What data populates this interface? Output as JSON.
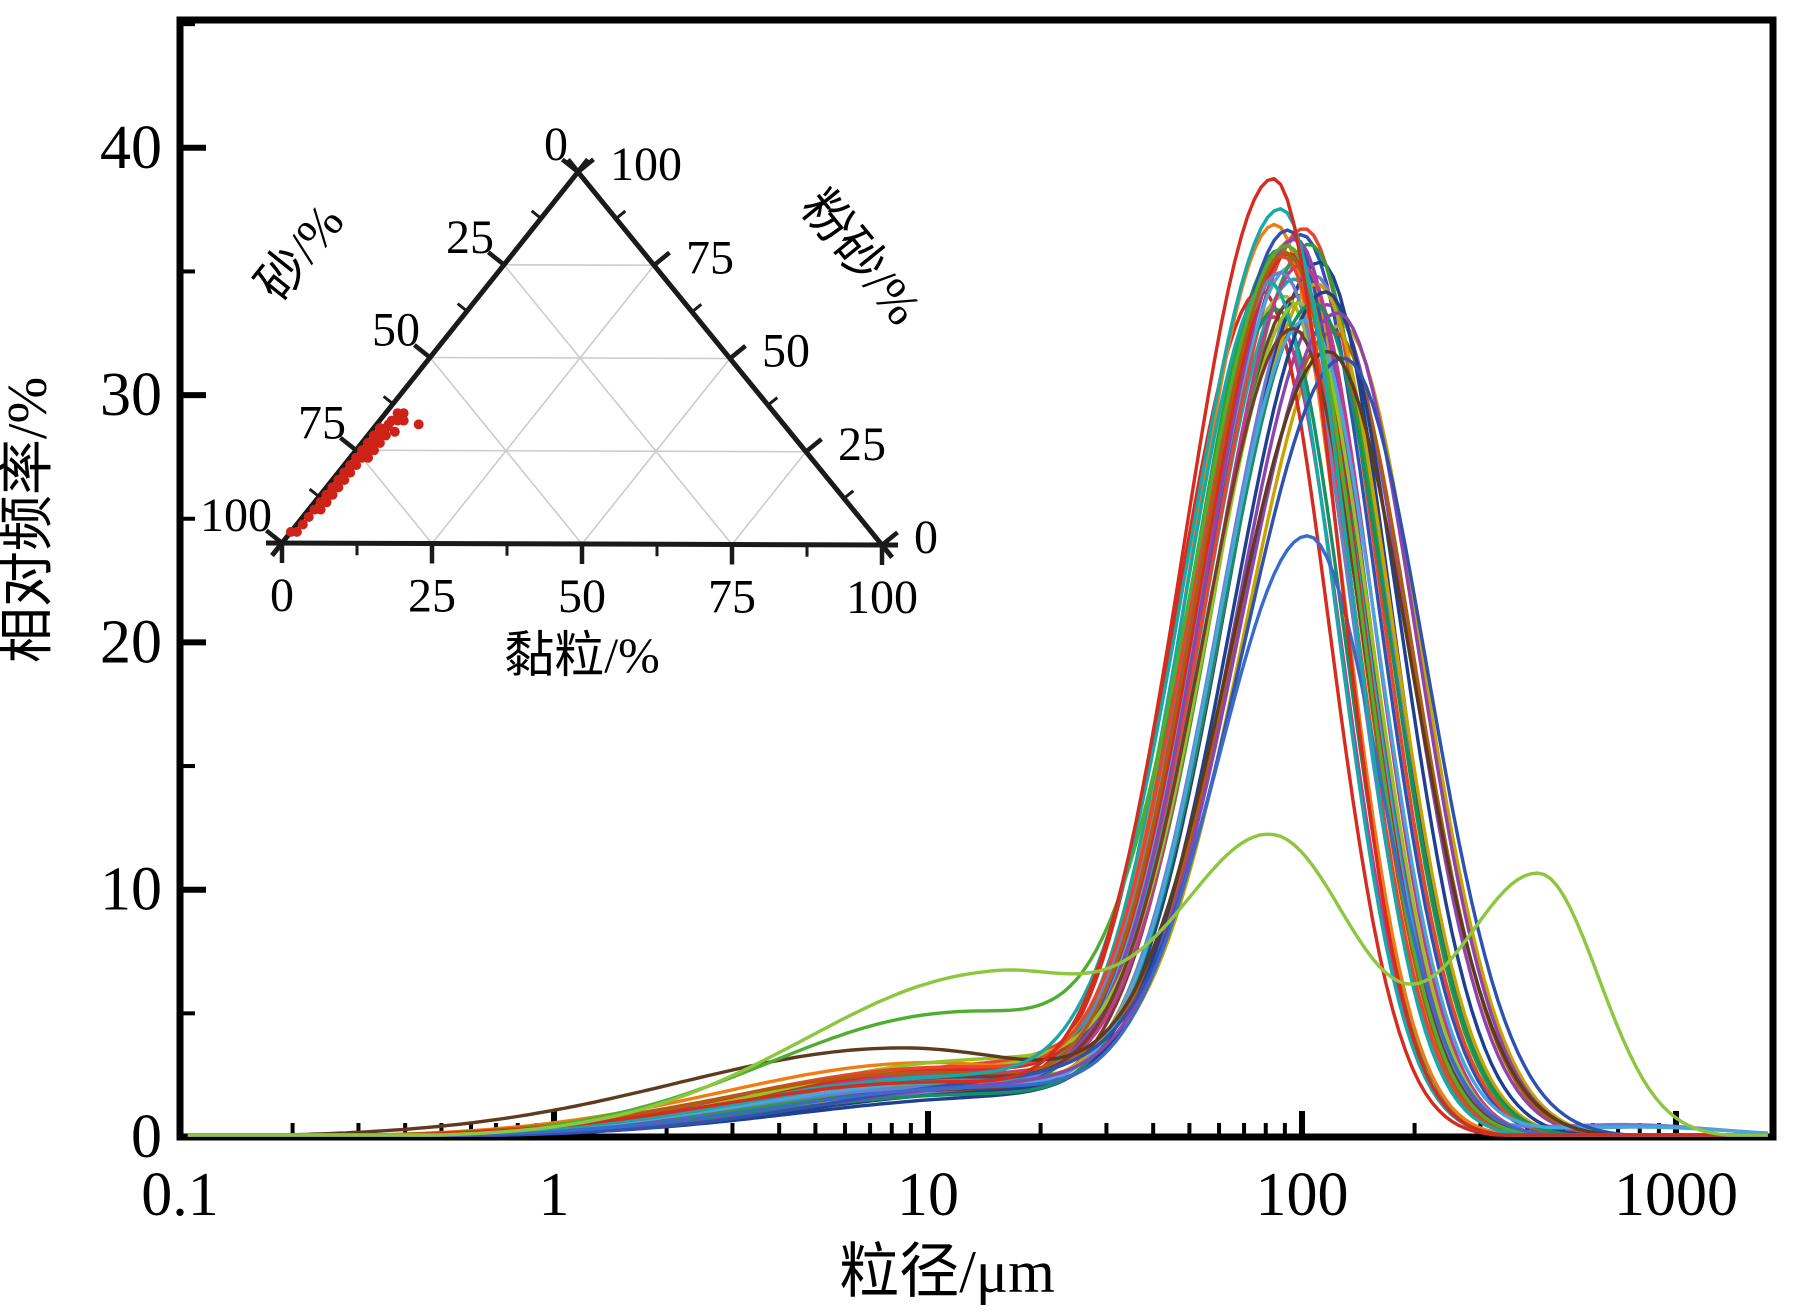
{
  "figure": {
    "background": "#ffffff",
    "frame_color": "#000000",
    "curve_stroke_width": 3.4
  },
  "chart_data": {
    "type": "line",
    "title": "",
    "xlabel": "粒径/μm",
    "ylabel": "相对频率/%",
    "x_scale": "log",
    "xlim": [
      0.1,
      1800
    ],
    "ylim": [
      0,
      45
    ],
    "x_ticks": [
      0.1,
      1,
      10,
      100,
      1000
    ],
    "x_tick_labels": [
      "0.1",
      "1",
      "10",
      "100",
      "1000"
    ],
    "y_ticks": [
      0,
      10,
      20,
      30,
      40
    ],
    "y_minor_ticks": [
      5,
      15,
      25,
      35,
      45
    ],
    "grid": "off",
    "legend": "none",
    "series_model": "each curve = sum of log-gaussian components [center_um, amplitude_pct, sigma_left_log10, sigma_right_log10]",
    "series": [
      {
        "c": "#f07d12",
        "p": [
          [
            14,
            2.6,
            0.55,
            0.4
          ],
          [
            95,
            36.0,
            0.24,
            0.19
          ]
        ]
      },
      {
        "c": "#2f52b0",
        "p": [
          [
            13,
            2.2,
            0.55,
            0.4
          ],
          [
            100,
            36.3,
            0.25,
            0.2
          ]
        ]
      },
      {
        "c": "#2e9e36",
        "p": [
          [
            12,
            2.0,
            0.55,
            0.4
          ],
          [
            88,
            35.7,
            0.24,
            0.19
          ]
        ]
      },
      {
        "c": "#8e44ad",
        "p": [
          [
            15,
            2.0,
            0.55,
            0.4
          ],
          [
            118,
            33.5,
            0.25,
            0.21
          ]
        ]
      },
      {
        "c": "#c8a400",
        "p": [
          [
            18,
            2.2,
            0.55,
            0.4
          ],
          [
            128,
            32.6,
            0.26,
            0.21
          ]
        ]
      },
      {
        "c": "#c23a8c",
        "p": [
          [
            10,
            2.4,
            0.55,
            0.4
          ],
          [
            84,
            33.0,
            0.23,
            0.18
          ]
        ]
      },
      {
        "c": "#18a8a8",
        "p": [
          [
            12,
            2.5,
            0.55,
            0.4
          ],
          [
            96,
            34.5,
            0.24,
            0.19
          ]
        ]
      },
      {
        "c": "#d62b1f",
        "p": [
          [
            9,
            2.2,
            0.55,
            0.4
          ],
          [
            78,
            34.1,
            0.23,
            0.18
          ]
        ]
      },
      {
        "c": "#6b7fd0",
        "p": [
          [
            14,
            1.8,
            0.55,
            0.4
          ],
          [
            108,
            34.7,
            0.25,
            0.2
          ]
        ]
      },
      {
        "c": "#1f3f8f",
        "p": [
          [
            16,
            1.6,
            0.55,
            0.4
          ],
          [
            112,
            35.2,
            0.25,
            0.19
          ]
        ]
      },
      {
        "c": "#98c222",
        "p": [
          [
            13,
            2.8,
            0.55,
            0.4
          ],
          [
            90,
            33.7,
            0.24,
            0.19
          ]
        ]
      },
      {
        "c": "#e8452c",
        "p": [
          [
            15,
            2.9,
            0.55,
            0.4
          ],
          [
            102,
            36.4,
            0.25,
            0.2
          ]
        ]
      },
      {
        "c": "#178f5f",
        "p": [
          [
            11,
            2.1,
            0.55,
            0.4
          ],
          [
            86,
            33.3,
            0.23,
            0.18
          ]
        ]
      },
      {
        "c": "#4aa5d8",
        "p": [
          [
            12,
            2.4,
            0.55,
            0.4
          ],
          [
            94,
            35.0,
            0.24,
            0.19
          ]
        ]
      },
      {
        "c": "#b05c10",
        "p": [
          [
            17,
            2.5,
            0.55,
            0.4
          ],
          [
            122,
            32.3,
            0.26,
            0.21
          ]
        ]
      },
      {
        "c": "#7a3b2e",
        "p": [
          [
            12,
            1.9,
            0.55,
            0.4
          ],
          [
            98,
            33.9,
            0.24,
            0.19
          ]
        ]
      },
      {
        "c": "#f07d12",
        "p": [
          [
            10,
            3.0,
            0.55,
            0.4
          ],
          [
            85,
            36.7,
            0.23,
            0.18
          ]
        ]
      },
      {
        "c": "#2f52b0",
        "p": [
          [
            12,
            2.0,
            0.55,
            0.4
          ],
          [
            92,
            36.5,
            0.24,
            0.19
          ]
        ]
      },
      {
        "c": "#2e9e36",
        "p": [
          [
            14,
            2.2,
            0.55,
            0.4
          ],
          [
            105,
            35.9,
            0.25,
            0.2
          ]
        ]
      },
      {
        "c": "#8e44ad",
        "p": [
          [
            13,
            2.3,
            0.55,
            0.4
          ],
          [
            96,
            36.1,
            0.24,
            0.19
          ]
        ]
      },
      {
        "c": "#c8a400",
        "p": [
          [
            15,
            2.0,
            0.55,
            0.4
          ],
          [
            110,
            34.3,
            0.25,
            0.2
          ]
        ]
      },
      {
        "c": "#c23a8c",
        "p": [
          [
            12,
            2.6,
            0.55,
            0.4
          ],
          [
            100,
            35.1,
            0.24,
            0.19
          ]
        ]
      },
      {
        "c": "#18a8a8",
        "p": [
          [
            10,
            2.3,
            0.55,
            0.4
          ],
          [
            82,
            34.4,
            0.23,
            0.18
          ]
        ]
      },
      {
        "c": "#d62b1f",
        "p": [
          [
            12,
            2.7,
            0.55,
            0.4
          ],
          [
            93,
            35.5,
            0.24,
            0.19
          ]
        ]
      },
      {
        "c": "#6b7fd0",
        "p": [
          [
            11,
            2.0,
            0.55,
            0.4
          ],
          [
            88,
            34.8,
            0.24,
            0.19
          ],
          [
            720,
            0.5,
            0.3,
            0.25
          ]
        ]
      },
      {
        "c": "#1f3f8f",
        "p": [
          [
            16,
            1.8,
            0.55,
            0.4
          ],
          [
            116,
            34.0,
            0.25,
            0.2
          ]
        ]
      },
      {
        "c": "#98c222",
        "p": [
          [
            14,
            3.1,
            0.55,
            0.4
          ],
          [
            99,
            33.4,
            0.24,
            0.19
          ]
        ]
      },
      {
        "c": "#e8452c",
        "p": [
          [
            11,
            2.8,
            0.55,
            0.4
          ],
          [
            89,
            35.4,
            0.24,
            0.19
          ]
        ]
      },
      {
        "c": "#178f5f",
        "p": [
          [
            13,
            1.7,
            0.55,
            0.4
          ],
          [
            108,
            33.6,
            0.25,
            0.2
          ]
        ]
      },
      {
        "c": "#4aa5d8",
        "p": [
          [
            12,
            2.2,
            0.55,
            0.4
          ],
          [
            103,
            32.9,
            0.24,
            0.19
          ],
          [
            800,
            0.4,
            0.3,
            0.25
          ]
        ]
      },
      {
        "c": "#b05c10",
        "p": [
          [
            10,
            2.6,
            0.55,
            0.4
          ],
          [
            91,
            35.6,
            0.24,
            0.19
          ]
        ]
      },
      {
        "c": "#7a3b2e",
        "p": [
          [
            12,
            2.4,
            0.55,
            0.4
          ],
          [
            95,
            32.5,
            0.24,
            0.19
          ]
        ]
      },
      {
        "c": "#8e44ad",
        "p": [
          [
            18,
            2.1,
            0.55,
            0.4
          ],
          [
            125,
            33.1,
            0.26,
            0.21
          ]
        ]
      },
      {
        "c": "#2f52b0",
        "p": [
          [
            20,
            2.3,
            0.55,
            0.4
          ],
          [
            130,
            31.2,
            0.27,
            0.22
          ]
        ]
      },
      {
        "c": "#5d3a20",
        "p": [
          [
            8.5,
            3.6,
            0.6,
            0.5
          ],
          [
            118,
            31.5,
            0.26,
            0.22
          ]
        ]
      },
      {
        "c": "#4fae32",
        "p": [
          [
            12,
            5.0,
            0.5,
            0.4
          ],
          [
            92,
            35.6,
            0.25,
            0.19
          ]
        ]
      },
      {
        "c": "#3b6bc8",
        "p": [
          [
            14,
            2.0,
            0.55,
            0.45
          ],
          [
            104,
            24.0,
            0.24,
            0.19
          ]
        ]
      },
      {
        "c": "#18a8a8",
        "p": [
          [
            12,
            2.4,
            0.55,
            0.4
          ],
          [
            88,
            37.3,
            0.25,
            0.185
          ]
        ]
      },
      {
        "c": "#d62b1f",
        "p": [
          [
            10,
            2.2,
            0.55,
            0.4
          ],
          [
            84,
            38.6,
            0.24,
            0.175
          ]
        ]
      },
      {
        "c": "#8dc63f",
        "p": [
          [
            15,
            6.6,
            0.5,
            0.35
          ],
          [
            85,
            11.5,
            0.25,
            0.22
          ],
          [
            430,
            10.6,
            0.22,
            0.16
          ]
        ]
      }
    ]
  },
  "ternary": {
    "axes": {
      "left_label": "砂/%",
      "right_label": "粉砂/%",
      "bottom_label": "黏粒/%"
    },
    "left_ticks": [
      0,
      25,
      50,
      75,
      100
    ],
    "right_ticks": [
      100,
      75,
      50,
      25,
      0
    ],
    "bottom_ticks": [
      0,
      25,
      50,
      75,
      100
    ],
    "grid_values": [
      25,
      50,
      75
    ],
    "edge_color": "#1a1a1a",
    "grid_color": "#cccccc",
    "point_color": "#cc2218",
    "points": [
      {
        "sand": 97,
        "silt": 3,
        "clay": 0
      },
      {
        "sand": 96,
        "silt": 3,
        "clay": 1
      },
      {
        "sand": 94,
        "silt": 5,
        "clay": 1
      },
      {
        "sand": 92,
        "silt": 7,
        "clay": 1
      },
      {
        "sand": 90,
        "silt": 9,
        "clay": 1
      },
      {
        "sand": 89,
        "silt": 9,
        "clay": 2
      },
      {
        "sand": 88,
        "silt": 11,
        "clay": 1
      },
      {
        "sand": 87,
        "silt": 11,
        "clay": 2
      },
      {
        "sand": 86,
        "silt": 13,
        "clay": 1
      },
      {
        "sand": 85,
        "silt": 13,
        "clay": 2
      },
      {
        "sand": 84,
        "silt": 15,
        "clay": 1
      },
      {
        "sand": 83,
        "silt": 15,
        "clay": 2
      },
      {
        "sand": 82,
        "silt": 17,
        "clay": 1
      },
      {
        "sand": 81,
        "silt": 17,
        "clay": 2
      },
      {
        "sand": 80,
        "silt": 19,
        "clay": 1
      },
      {
        "sand": 79,
        "silt": 19,
        "clay": 2
      },
      {
        "sand": 78,
        "silt": 21,
        "clay": 1
      },
      {
        "sand": 77,
        "silt": 21,
        "clay": 2
      },
      {
        "sand": 76,
        "silt": 23,
        "clay": 1
      },
      {
        "sand": 75,
        "silt": 23,
        "clay": 2
      },
      {
        "sand": 74,
        "silt": 25,
        "clay": 1
      },
      {
        "sand": 74,
        "silt": 23,
        "clay": 3
      },
      {
        "sand": 73,
        "silt": 25,
        "clay": 2
      },
      {
        "sand": 72,
        "silt": 27,
        "clay": 1
      },
      {
        "sand": 72,
        "silt": 25,
        "clay": 3
      },
      {
        "sand": 71,
        "silt": 27,
        "clay": 2
      },
      {
        "sand": 70,
        "silt": 29,
        "clay": 1
      },
      {
        "sand": 70,
        "silt": 27,
        "clay": 3
      },
      {
        "sand": 69,
        "silt": 29,
        "clay": 2
      },
      {
        "sand": 68,
        "silt": 31,
        "clay": 1
      },
      {
        "sand": 68,
        "silt": 29,
        "clay": 3
      },
      {
        "sand": 67,
        "silt": 31,
        "clay": 2
      },
      {
        "sand": 66,
        "silt": 32,
        "clay": 2
      },
      {
        "sand": 66,
        "silt": 30,
        "clay": 4
      },
      {
        "sand": 65,
        "silt": 33,
        "clay": 2
      },
      {
        "sand": 64,
        "silt": 33,
        "clay": 3
      },
      {
        "sand": 63,
        "silt": 35,
        "clay": 2
      },
      {
        "sand": 63,
        "silt": 33,
        "clay": 4
      },
      {
        "sand": 62,
        "silt": 35,
        "clay": 3
      },
      {
        "sand": 61,
        "silt": 32,
        "clay": 7
      }
    ]
  }
}
